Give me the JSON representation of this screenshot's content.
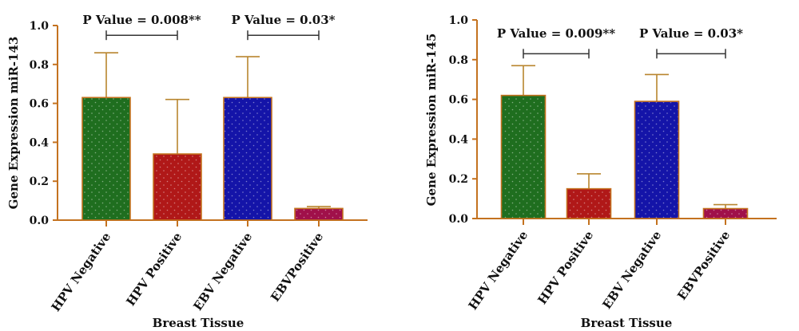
{
  "colors": {
    "axis": "#c4721f",
    "bar_stroke": "#c4721f",
    "error_bar": "#b8852e",
    "bracket": "#333333",
    "fills": [
      "#1f6e1f",
      "#b01818",
      "#1414a8",
      "#a0104a"
    ],
    "dots": "#ffffff"
  },
  "chart_data": [
    {
      "type": "bar",
      "categories": [
        "HPV Negative",
        "HPV Positive",
        "EBV Negative",
        "EBVPositive"
      ],
      "values": [
        0.63,
        0.34,
        0.63,
        0.06
      ],
      "errors": [
        0.23,
        0.28,
        0.21,
        0.01
      ],
      "ylim": [
        0,
        1.0
      ],
      "yticks": [
        "0.0",
        "0.2",
        "0.4",
        "0.6",
        "0.8",
        "1.0"
      ],
      "ylabel": "Gene Expression miR-143",
      "xlabel": "Breast Tissue",
      "annotations": [
        {
          "text": "P Value = 0.008**",
          "from": 0,
          "to": 1,
          "level": 0.95
        },
        {
          "text": "P Value = 0.03*",
          "from": 2,
          "to": 3,
          "level": 0.95
        }
      ]
    },
    {
      "type": "bar",
      "categories": [
        "HPV Negative",
        "HPV Positive",
        "EBV Negative",
        "EBVPositive"
      ],
      "values": [
        0.62,
        0.15,
        0.59,
        0.05
      ],
      "errors": [
        0.15,
        0.075,
        0.135,
        0.02
      ],
      "ylim": [
        0,
        1.0
      ],
      "yticks": [
        "0.0",
        "0.2",
        "0.4",
        "0.6",
        "0.8",
        "1.0"
      ],
      "ylabel": "Gene Expression miR-145",
      "xlabel": "Breast Tissue",
      "annotations": [
        {
          "text": "P Value = 0.009**",
          "from": 0,
          "to": 1,
          "level": 0.83
        },
        {
          "text": "P Value = 0.03*",
          "from": 2,
          "to": 3,
          "level": 0.83
        }
      ]
    }
  ]
}
